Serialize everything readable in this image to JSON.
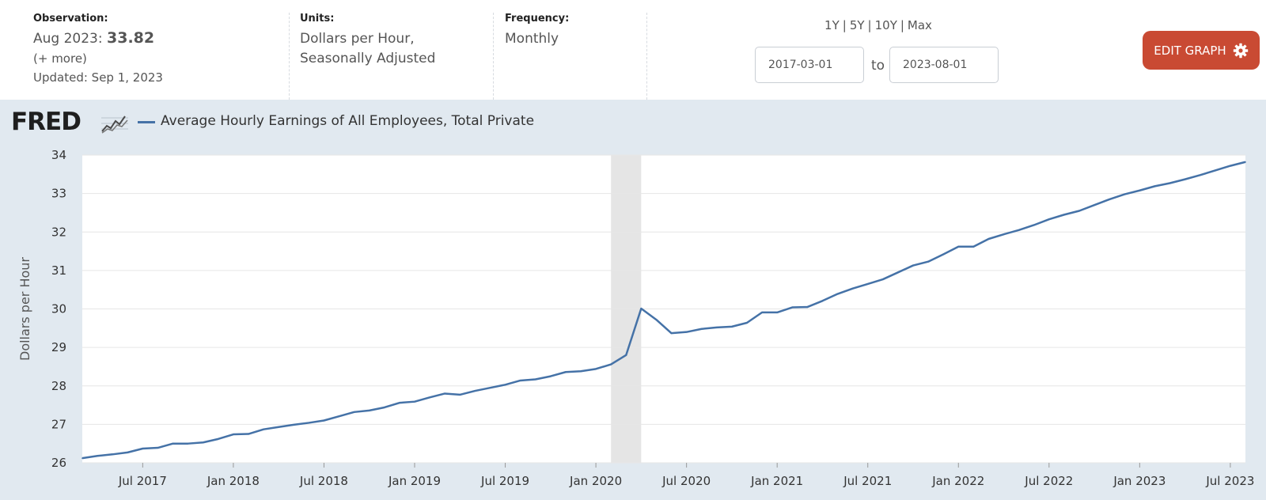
{
  "observation": {
    "label": "Observation:",
    "period": "Aug 2023:",
    "value": "33.82",
    "more": "(+ more)",
    "updated": "Updated: Sep 1, 2023"
  },
  "units": {
    "label": "Units:",
    "line1": "Dollars per Hour,",
    "line2": "Seasonally Adjusted"
  },
  "frequency": {
    "label": "Frequency:",
    "value": "Monthly"
  },
  "ranges": [
    "1Y",
    "5Y",
    "10Y",
    "Max"
  ],
  "date_range": {
    "start": "2017-03-01",
    "to_label": "to",
    "end": "2023-08-01"
  },
  "edit_graph_label": "EDIT GRAPH",
  "icons": {
    "settings": "gear-icon",
    "logo_graph": "fred-graph-icon"
  },
  "colors": {
    "series": "#4572a7",
    "button": "#c94a33",
    "panel": "#e1e9f0",
    "recession": "#e5e5e5"
  },
  "logo_text": "FRED",
  "chart_data": {
    "type": "line",
    "series": [
      {
        "name": "Average Hourly Earnings of All Employees, Total Private",
        "x": [
          "2017-03",
          "2017-04",
          "2017-05",
          "2017-06",
          "2017-07",
          "2017-08",
          "2017-09",
          "2017-10",
          "2017-11",
          "2017-12",
          "2018-01",
          "2018-02",
          "2018-03",
          "2018-04",
          "2018-05",
          "2018-06",
          "2018-07",
          "2018-08",
          "2018-09",
          "2018-10",
          "2018-11",
          "2018-12",
          "2019-01",
          "2019-02",
          "2019-03",
          "2019-04",
          "2019-05",
          "2019-06",
          "2019-07",
          "2019-08",
          "2019-09",
          "2019-10",
          "2019-11",
          "2019-12",
          "2020-01",
          "2020-02",
          "2020-03",
          "2020-04",
          "2020-05",
          "2020-06",
          "2020-07",
          "2020-08",
          "2020-09",
          "2020-10",
          "2020-11",
          "2020-12",
          "2021-01",
          "2021-02",
          "2021-03",
          "2021-04",
          "2021-05",
          "2021-06",
          "2021-07",
          "2021-08",
          "2021-09",
          "2021-10",
          "2021-11",
          "2021-12",
          "2022-01",
          "2022-02",
          "2022-03",
          "2022-04",
          "2022-05",
          "2022-06",
          "2022-07",
          "2022-08",
          "2022-09",
          "2022-10",
          "2022-11",
          "2022-12",
          "2023-01",
          "2023-02",
          "2023-03",
          "2023-04",
          "2023-05",
          "2023-06",
          "2023-07",
          "2023-08"
        ],
        "values": [
          26.12,
          26.18,
          26.22,
          26.27,
          26.37,
          26.39,
          26.5,
          26.5,
          26.53,
          26.62,
          26.74,
          26.75,
          26.87,
          26.93,
          26.99,
          27.04,
          27.1,
          27.21,
          27.32,
          27.36,
          27.44,
          27.56,
          27.59,
          27.7,
          27.8,
          27.77,
          27.87,
          27.95,
          28.03,
          28.14,
          28.17,
          28.25,
          28.36,
          28.38,
          28.44,
          28.56,
          28.8,
          30.01,
          29.72,
          29.37,
          29.4,
          29.48,
          29.52,
          29.54,
          29.64,
          29.91,
          29.91,
          30.04,
          30.05,
          30.21,
          30.39,
          30.53,
          30.65,
          30.77,
          30.95,
          31.13,
          31.23,
          31.42,
          31.62,
          31.62,
          31.82,
          31.94,
          32.05,
          32.18,
          32.33,
          32.45,
          32.55,
          32.7,
          32.85,
          32.98,
          33.08,
          33.19,
          33.27,
          33.37,
          33.48,
          33.6,
          33.72,
          33.82
        ]
      }
    ],
    "recession": [
      "2020-02",
      "2020-04"
    ],
    "xticks": [
      "Jul 2017",
      "Jan 2018",
      "Jul 2018",
      "Jan 2019",
      "Jul 2019",
      "Jan 2020",
      "Jul 2020",
      "Jan 2021",
      "Jul 2021",
      "Jan 2022",
      "Jul 2022",
      "Jan 2023",
      "Jul 2023"
    ],
    "yticks": [
      26,
      27,
      28,
      29,
      30,
      31,
      32,
      33,
      34
    ],
    "ylim": [
      26,
      34
    ],
    "ylabel": "Dollars per Hour",
    "xlabel": "",
    "grid": true,
    "legend": "top-left"
  }
}
